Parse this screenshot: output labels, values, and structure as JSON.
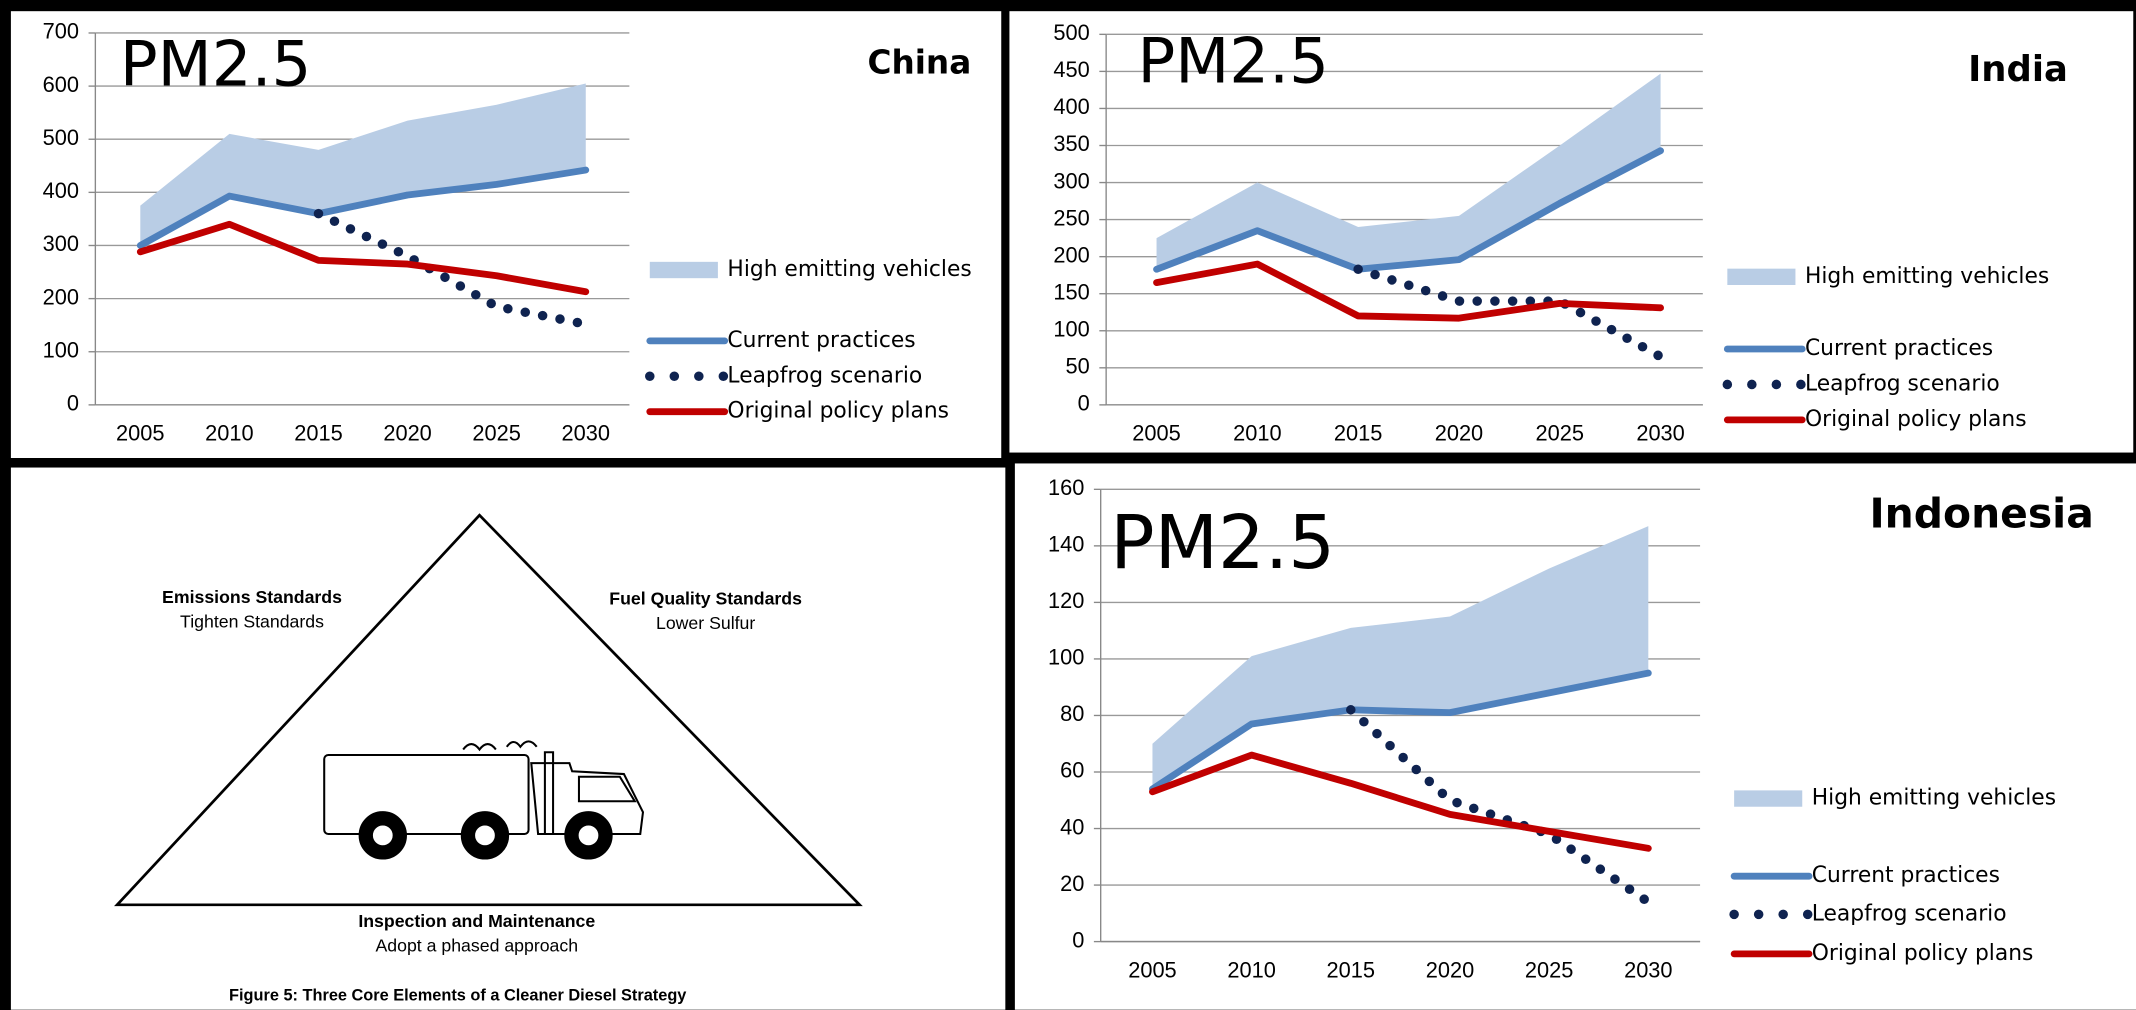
{
  "chart_data": [
    {
      "type": "line",
      "title": "China",
      "annotation": "PM2.5",
      "categories": [
        "2005",
        "2010",
        "2015",
        "2020",
        "2025",
        "2030"
      ],
      "ylim": [
        0,
        700
      ],
      "yticks": [
        0,
        100,
        200,
        300,
        400,
        500,
        600,
        700
      ],
      "grid": true,
      "legend": "right",
      "series": [
        {
          "name": "High emitting vehicles",
          "style": "area",
          "color": "#b9cde5",
          "values": [
            375,
            510,
            480,
            535,
            565,
            605
          ]
        },
        {
          "name": "Current practices",
          "style": "line",
          "color": "#4f81bd",
          "values": [
            300,
            393,
            360,
            395,
            415,
            442
          ]
        },
        {
          "name": "Leapfrog scenario",
          "style": "dotted",
          "color": "#0f2350",
          "values": [
            null,
            null,
            360,
            280,
            185,
            152
          ]
        },
        {
          "name": "Original policy plans",
          "style": "line",
          "color": "#c00000",
          "values": [
            288,
            340,
            272,
            265,
            243,
            213
          ]
        }
      ]
    },
    {
      "type": "line",
      "title": "India",
      "annotation": "PM2.5",
      "categories": [
        "2005",
        "2010",
        "2015",
        "2020",
        "2025",
        "2030"
      ],
      "ylim": [
        0,
        500
      ],
      "yticks": [
        0,
        50,
        100,
        150,
        200,
        250,
        300,
        350,
        400,
        450,
        500
      ],
      "grid": true,
      "legend": "right",
      "series": [
        {
          "name": "High emitting vehicles",
          "style": "area",
          "color": "#b9cde5",
          "values": [
            225,
            300,
            240,
            255,
            350,
            447
          ]
        },
        {
          "name": "Current practices",
          "style": "line",
          "color": "#4f81bd",
          "values": [
            183,
            235,
            183,
            196,
            272,
            343
          ]
        },
        {
          "name": "Leapfrog scenario",
          "style": "dotted",
          "color": "#0f2350",
          "values": [
            null,
            null,
            183,
            140,
            140,
            65
          ]
        },
        {
          "name": "Original policy plans",
          "style": "line",
          "color": "#c00000",
          "values": [
            165,
            190,
            120,
            117,
            137,
            131
          ]
        }
      ]
    },
    {
      "type": "line",
      "title": "Indonesia",
      "annotation": "PM2.5",
      "categories": [
        "2005",
        "2010",
        "2015",
        "2020",
        "2025",
        "2030"
      ],
      "ylim": [
        0,
        160
      ],
      "yticks": [
        0,
        20,
        40,
        60,
        80,
        100,
        120,
        140,
        160
      ],
      "grid": true,
      "legend": "right",
      "series": [
        {
          "name": "High emitting vehicles",
          "style": "area",
          "color": "#b9cde5",
          "values": [
            70,
            101,
            111,
            115,
            132,
            147
          ]
        },
        {
          "name": "Current practices",
          "style": "line",
          "color": "#4f81bd",
          "values": [
            54,
            77,
            82,
            81,
            88,
            95
          ]
        },
        {
          "name": "Leapfrog scenario",
          "style": "dotted",
          "color": "#0f2350",
          "values": [
            null,
            null,
            82,
            50,
            38,
            14
          ]
        },
        {
          "name": "Original policy plans",
          "style": "line",
          "color": "#c00000",
          "values": [
            53,
            66,
            56,
            45,
            39,
            33
          ]
        }
      ]
    }
  ],
  "diagram": {
    "corners": [
      {
        "title": "Emissions Standards",
        "subtitle": "Tighten Standards"
      },
      {
        "title": "Fuel Quality Standards",
        "subtitle": "Lower Sulfur"
      },
      {
        "title": "Inspection and Maintenance",
        "subtitle": "Adopt a phased approach"
      }
    ],
    "caption": "Figure 5: Three Core Elements of a Cleaner Diesel Strategy"
  }
}
